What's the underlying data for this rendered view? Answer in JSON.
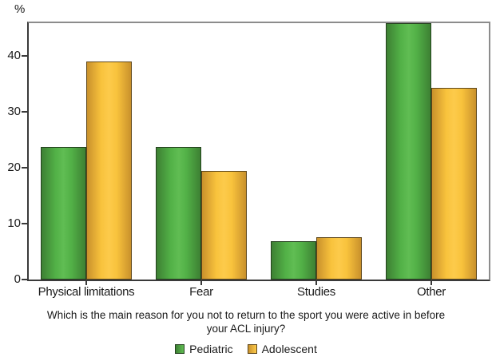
{
  "chart_data": {
    "type": "bar",
    "title": "",
    "y_unit_label": "%",
    "categories": [
      "Physical limitations",
      "Fear",
      "Studies",
      "Other"
    ],
    "series": [
      {
        "name": "Pediatric",
        "values": [
          23.7,
          23.7,
          6.8,
          45.8
        ],
        "fill": {
          "edge": "#3D8033",
          "mid": "#52B147",
          "bright": "#60BD53"
        },
        "border": "#24401E"
      },
      {
        "name": "Adolescent",
        "values": [
          38.9,
          19.4,
          7.5,
          34.3
        ],
        "fill": {
          "edge": "#C9912C",
          "mid": "#F8C23C",
          "bright": "#FDCB4B"
        },
        "border": "#5E471B"
      }
    ],
    "ylim": [
      0,
      45.8
    ],
    "yticks": [
      0,
      10,
      20,
      30,
      40
    ],
    "xlabel": "Which is the main reason for you not to return to the sport you were active in before your ACL injury?",
    "xlabel_lines": [
      "Which is the main reason for you not to return to the sport you were active in before",
      "your ACL injury?"
    ],
    "legend": {
      "position": "bottom",
      "entries": [
        "Pediatric",
        "Adolescent"
      ]
    },
    "grid": false,
    "axis_colors": {
      "frame_light": "#8C8C8C",
      "frame_dark": "#3A3A3A",
      "text": "#1A1A1A"
    }
  }
}
